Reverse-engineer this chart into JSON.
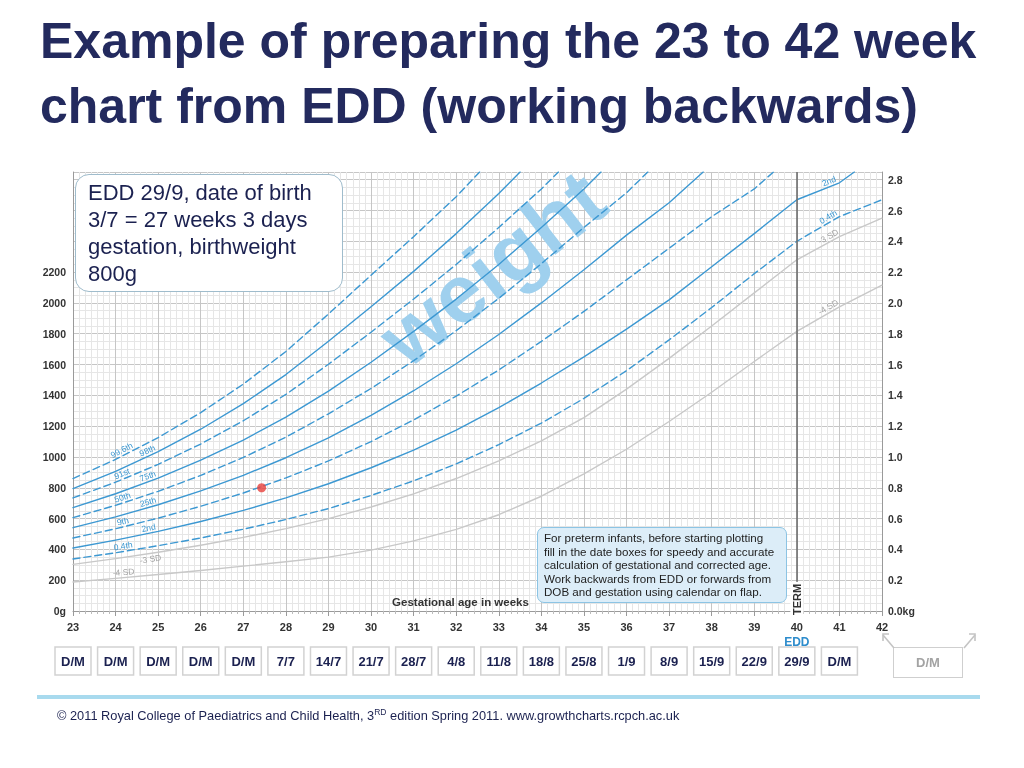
{
  "chart_data": {
    "type": "line",
    "title": "Example of preparing the 23 to 42 week chart from EDD (working backwards)",
    "xlabel": "Gestational age in weeks",
    "xlim": [
      23,
      42
    ],
    "xticks": [
      23,
      24,
      25,
      26,
      27,
      28,
      29,
      30,
      31,
      32,
      33,
      34,
      35,
      36,
      37,
      38,
      39,
      40,
      41,
      42
    ],
    "x2lim": [
      "--06-02",
      "--10-13"
    ],
    "x2ticks": [
      {
        "value": "--06-02",
        "label": "D/M"
      },
      {
        "value": "--06-09",
        "label": "D/M"
      },
      {
        "value": "--06-16",
        "label": "D/M"
      },
      {
        "value": "--06-23",
        "label": "D/M"
      },
      {
        "value": "--06-30",
        "label": "D/M"
      },
      {
        "value": "--07-07",
        "label": "7/7"
      },
      {
        "value": "--07-14",
        "label": "14/7"
      },
      {
        "value": "--07-21",
        "label": "21/7"
      },
      {
        "value": "--07-28",
        "label": "28/7"
      },
      {
        "value": "--08-04",
        "label": "4/8"
      },
      {
        "value": "--08-11",
        "label": "11/8"
      },
      {
        "value": "--08-18",
        "label": "18/8"
      },
      {
        "value": "--08-25",
        "label": "25/8"
      },
      {
        "value": "--09-01",
        "label": "1/9"
      },
      {
        "value": "--09-08",
        "label": "8/9"
      },
      {
        "value": "--09-15",
        "label": "15/9"
      },
      {
        "value": "--09-22",
        "label": "22/9"
      },
      {
        "value": "--09-29",
        "label": "29/9"
      },
      {
        "value": "--10-06",
        "label": "D/M"
      }
    ],
    "ylim": [
      0,
      2850
    ],
    "yticks": [
      {
        "value": 0,
        "label": "0g"
      },
      200,
      400,
      600,
      800,
      1000,
      1200,
      1400,
      1600,
      1800,
      2000,
      2200
    ],
    "y2lim": [
      0,
      2.85
    ],
    "y2ticks": [
      {
        "value": 0,
        "label": "0.0kg"
      },
      0.2,
      0.4,
      0.6,
      0.8,
      {
        "value": 1,
        "label": "1.0"
      },
      1.2,
      1.4,
      1.6,
      1.8,
      {
        "value": 2,
        "label": "2.0"
      },
      2.2,
      2.4,
      2.6,
      2.8
    ],
    "grid": true,
    "marker": "none",
    "series": [
      {
        "name": "99.6th",
        "color": "#3c98d2",
        "line_style": "dashed",
        "x": [
          23,
          24,
          25,
          26,
          27,
          28,
          29,
          30,
          31,
          32,
          32.55
        ],
        "values": [
          860,
          984,
          1126,
          1288,
          1473,
          1685,
          1928,
          2180,
          2430,
          2690,
          2850
        ]
      },
      {
        "name": "98th",
        "color": "#3c98d2",
        "line_style": "solid",
        "x": [
          23,
          24,
          25,
          26,
          27,
          28,
          29,
          30,
          31,
          32,
          33,
          33.5
        ],
        "values": [
          795,
          907,
          1034,
          1180,
          1346,
          1535,
          1751,
          1975,
          2205,
          2450,
          2710,
          2850
        ]
      },
      {
        "name": "91st",
        "color": "#3c98d2",
        "line_style": "dashed",
        "x": [
          23,
          24,
          25,
          26,
          27,
          28,
          29,
          30,
          31,
          32,
          33,
          34,
          34.4
        ],
        "values": [
          734,
          836,
          952,
          1084,
          1235,
          1406,
          1602,
          1810,
          2025,
          2250,
          2490,
          2740,
          2850
        ]
      },
      {
        "name": "75th",
        "color": "#3c98d2",
        "line_style": "solid",
        "x": [
          23,
          24,
          25,
          26,
          27,
          28,
          29,
          30,
          31,
          32,
          33,
          34,
          35,
          35.4
        ],
        "values": [
          671,
          761,
          863,
          979,
          1110,
          1259,
          1427,
          1615,
          1815,
          2025,
          2250,
          2490,
          2740,
          2850
        ]
      },
      {
        "name": "50th",
        "color": "#3c98d2",
        "line_style": "dashed",
        "x": [
          23,
          24,
          25,
          26,
          27,
          28,
          29,
          30,
          31,
          32,
          33,
          34,
          35,
          36,
          36.5
        ],
        "values": [
          606,
          686,
          777,
          880,
          997,
          1129,
          1280,
          1445,
          1625,
          1820,
          2030,
          2255,
          2490,
          2715,
          2850
        ]
      },
      {
        "name": "25th",
        "color": "#3c98d2",
        "line_style": "solid",
        "x": [
          23,
          24,
          25,
          26,
          27,
          28,
          29,
          30,
          31,
          32,
          33,
          34,
          35,
          36,
          37,
          37.8
        ],
        "values": [
          541,
          611,
          690,
          780,
          881,
          995,
          1124,
          1270,
          1430,
          1605,
          1795,
          2000,
          2215,
          2440,
          2650,
          2850
        ]
      },
      {
        "name": "9th",
        "color": "#3c98d2",
        "line_style": "dashed",
        "x": [
          23,
          24,
          25,
          26,
          27,
          28,
          29,
          30,
          31,
          32,
          33,
          34,
          35,
          36,
          37,
          38,
          39,
          39.45
        ],
        "values": [
          474,
          534,
          603,
          680,
          766,
          864,
          974,
          1100,
          1240,
          1395,
          1565,
          1750,
          1945,
          2150,
          2355,
          2560,
          2740,
          2850
        ]
      },
      {
        "name": "2nd",
        "color": "#3c98d2",
        "line_style": "solid",
        "x": [
          23,
          24,
          25,
          26,
          27,
          28,
          29,
          30,
          31,
          32,
          33,
          34,
          35,
          36,
          37,
          38,
          39,
          40,
          41,
          41.35
        ],
        "values": [
          409,
          460,
          517,
          581,
          653,
          734,
          826,
          930,
          1045,
          1175,
          1320,
          1480,
          1650,
          1830,
          2020,
          2235,
          2450,
          2670,
          2780,
          2850
        ]
      },
      {
        "name": "0.4th",
        "color": "#3c98d2",
        "line_style": "dashed",
        "x": [
          23,
          24,
          25,
          26,
          27,
          28,
          29,
          30,
          31,
          32,
          33,
          34,
          35,
          36,
          37,
          38,
          39,
          40,
          41,
          42
        ],
        "values": [
          338,
          378,
          424,
          474,
          531,
          594,
          665,
          750,
          845,
          955,
          1080,
          1220,
          1380,
          1560,
          1760,
          1970,
          2190,
          2400,
          2560,
          2670
        ]
      },
      {
        "name": "-3 SD",
        "color": "#c8c8c8",
        "line_style": "solid",
        "x": [
          23,
          24,
          25,
          26,
          27,
          28,
          29,
          30,
          31,
          32,
          33,
          34,
          35,
          36,
          37,
          38,
          39,
          40,
          41,
          42
        ],
        "values": [
          303,
          340,
          381,
          427,
          478,
          535,
          600,
          675,
          760,
          860,
          975,
          1105,
          1255,
          1440,
          1640,
          1850,
          2065,
          2280,
          2430,
          2550
        ]
      },
      {
        "name": "-4 SD",
        "color": "#c8c8c8",
        "line_style": "solid",
        "x": [
          23,
          24,
          25,
          26,
          27,
          28,
          29,
          30,
          31,
          32,
          33,
          34,
          35,
          36,
          37,
          38,
          39,
          40,
          41,
          42
        ],
        "values": [
          188,
          212,
          237,
          263,
          291,
          320,
          350,
          395,
          455,
          530,
          625,
          745,
          890,
          1050,
          1230,
          1420,
          1620,
          1815,
          1975,
          2115
        ]
      },
      {
        "type": "scatter",
        "color": "#e8413c",
        "marker": "circle",
        "x": [
          27.43
        ],
        "values": [
          800
        ]
      }
    ],
    "ref_lines": [
      {
        "axis": "x",
        "value": 40,
        "label": "TERM",
        "color": "#6e6e6e"
      }
    ],
    "annotations": [
      "EDD 29/9, date of birth 3/7 = 27 weeks 3 days gestation, birthweight 800g",
      "For preterm infants, before starting plotting\nfill in the date boxes for speedy and accurate\ncalculation of gestational and corrected age.\nWork backwards from EDD or forwards from\nDOB and gestation using calendar on flap.",
      "weight",
      "EDD",
      "D/M",
      "© 2011 Royal College of Paediatrics and Child Health, 3$^{RD}$ edition Spring 2011. www.growthcharts.rcpch.ac.uk"
    ]
  }
}
